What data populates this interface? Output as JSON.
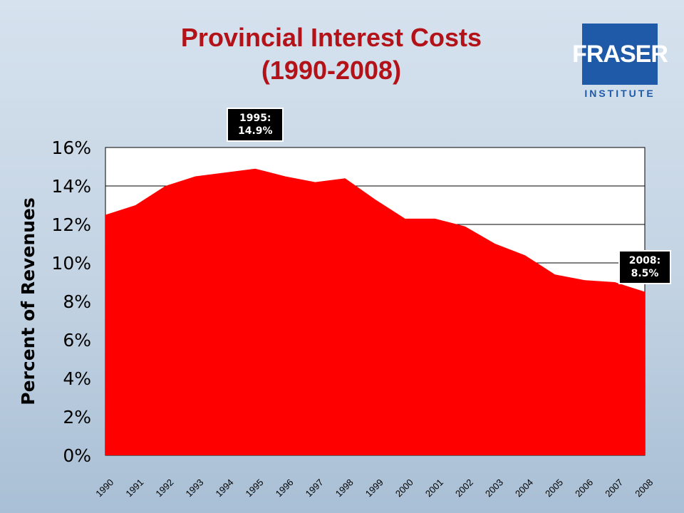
{
  "title_line1": "Provincial Interest Costs",
  "title_line2": "(1990-2008)",
  "logo": {
    "name": "FRASER",
    "sub": "INSTITUTE"
  },
  "colors": {
    "area": "#ff0000",
    "title": "#b21218",
    "logo": "#1f5aa8",
    "plot_bg": "#ffffff"
  },
  "chart_data": {
    "type": "area",
    "title": "Provincial Interest Costs (1990-2008)",
    "ylabel": "Percent of Revenues",
    "xlabel": "",
    "ylim": [
      0,
      16
    ],
    "grid": true,
    "y_ticks": [
      "0%",
      "2%",
      "4%",
      "6%",
      "8%",
      "10%",
      "12%",
      "14%",
      "16%"
    ],
    "x": [
      "1990",
      "1991",
      "1992",
      "1993",
      "1994",
      "1995",
      "1996",
      "1997",
      "1998",
      "1999",
      "2000",
      "2001",
      "2002",
      "2003",
      "2004",
      "2005",
      "2006",
      "2007",
      "2008"
    ],
    "values": [
      12.5,
      13.0,
      14.0,
      14.5,
      14.7,
      14.9,
      14.5,
      14.2,
      14.4,
      13.3,
      12.3,
      12.3,
      11.9,
      11.0,
      10.4,
      9.4,
      9.1,
      9.0,
      8.5
    ],
    "annotations": [
      {
        "label_line1": "1995:",
        "label_line2": "14.9%",
        "x": "1995",
        "y": 14.9
      },
      {
        "label_line1": "2008:",
        "label_line2": "8.5%",
        "x": "2008",
        "y": 8.5
      }
    ]
  }
}
